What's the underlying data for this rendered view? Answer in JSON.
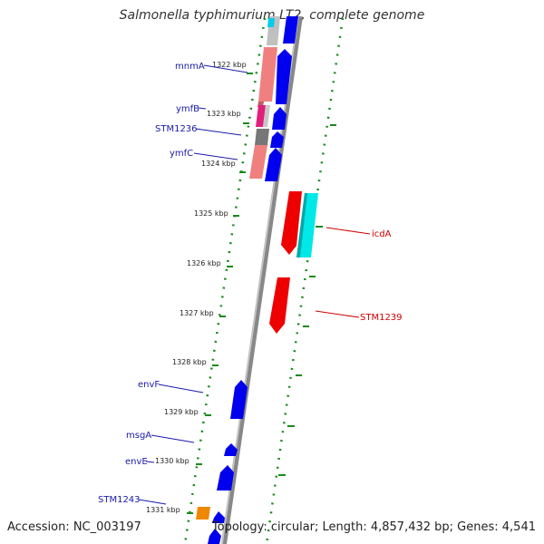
{
  "title": "Salmonella typhimurium LT2, complete genome",
  "footer": {
    "accession": "Accession: NC_003197",
    "topology": "Topology: circular; Length: 4,857,432 bp; Genes: 4,541"
  },
  "colors": {
    "forward_cds": "#0000ee",
    "reverse_cds": "#ee0000",
    "label_forward": "#1a1aa8",
    "label_reverse": "#cc0000",
    "tick": "#1a8a1a",
    "backbone": "#888888",
    "pink": "#f08080",
    "magenta": "#e0207a",
    "cyan": "#00e8e8",
    "orange": "#ee8800",
    "gray": "#777777"
  },
  "ticks": [
    {
      "label": "1322 kbp"
    },
    {
      "label": "1323 kbp"
    },
    {
      "label": "1324 kbp"
    },
    {
      "label": "1325 kbp"
    },
    {
      "label": "1326 kbp"
    },
    {
      "label": "1327 kbp"
    },
    {
      "label": "1328 kbp"
    },
    {
      "label": "1329 kbp"
    },
    {
      "label": "1330 kbp"
    },
    {
      "label": "1331 kbp"
    }
  ],
  "gene_labels": {
    "mnmA": "mnmA",
    "ymfB": "ymfB",
    "STM1236": "STM1236",
    "ymfC": "ymfC",
    "icdA": "icdA",
    "STM1239": "STM1239",
    "envF": "envF",
    "msgA": "msgA",
    "envE": "envE",
    "STM1243": "STM1243"
  }
}
